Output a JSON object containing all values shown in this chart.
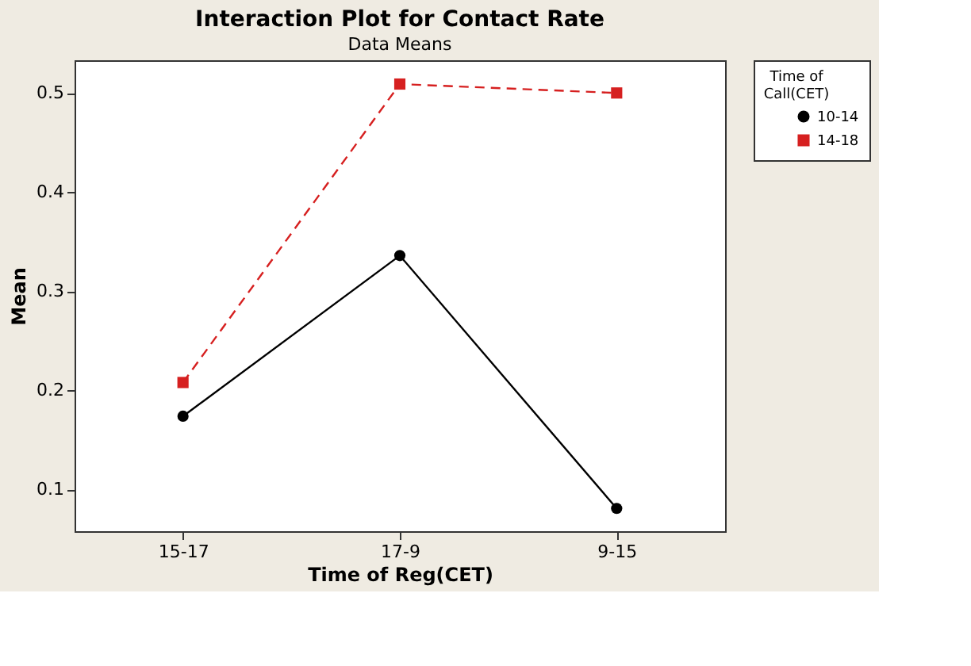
{
  "chart_data": {
    "type": "line",
    "title": "Interaction Plot for Contact Rate",
    "subtitle": "Data Means",
    "xlabel": "Time of Reg(CET)",
    "ylabel": "Mean",
    "legend_title": "Time of Call(CET)",
    "categories": [
      "15-17",
      "17-9",
      "9-15"
    ],
    "series": [
      {
        "name": "10-14",
        "color": "#000000",
        "values": [
          0.174,
          0.336,
          0.081
        ],
        "marker": "circle",
        "line_style": "solid"
      },
      {
        "name": "14-18",
        "color": "#d62020",
        "values": [
          0.208,
          0.509,
          0.5
        ],
        "marker": "square",
        "line_style": "dashed"
      }
    ],
    "ylim": [
      0.058,
      0.533
    ],
    "yticks": [
      0.1,
      0.2,
      0.3,
      0.4,
      0.5
    ],
    "grid": false,
    "legend": "top right"
  }
}
